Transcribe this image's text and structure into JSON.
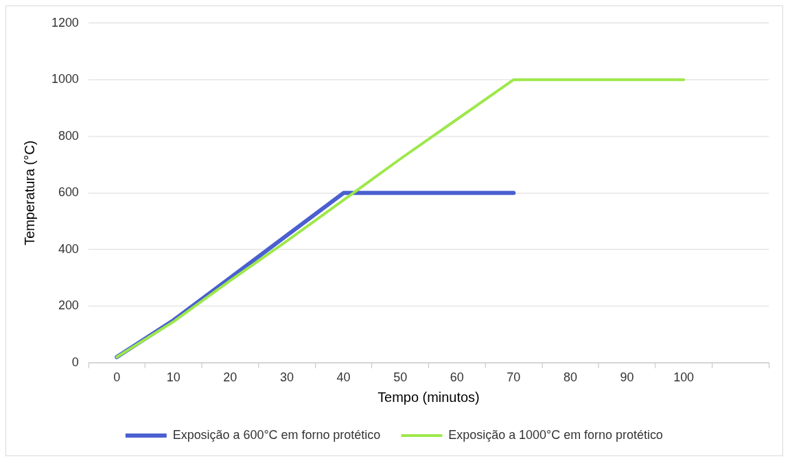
{
  "chart_data": {
    "type": "line",
    "xlabel": "Tempo (minutos)",
    "ylabel": "Temperatura (°C)",
    "categories": [
      "0",
      "10",
      "20",
      "30",
      "40",
      "50",
      "60",
      "70",
      "80",
      "90",
      "100",
      null
    ],
    "series": [
      {
        "name": "Exposição a 600°C em forno protético",
        "color": "#4a5fd0",
        "values": [
          20,
          150,
          300,
          450,
          600,
          600,
          600,
          600,
          null,
          null,
          null,
          null
        ]
      },
      {
        "name": "Exposição a 1000°C em forno protético",
        "color": "#9de84a",
        "values": [
          20,
          145,
          290,
          430,
          575,
          720,
          860,
          1000,
          1000,
          1000,
          1000,
          null
        ]
      }
    ],
    "ylim": [
      0,
      1200
    ],
    "yticks": [
      0,
      200,
      400,
      600,
      800,
      1000,
      1200
    ],
    "grid": "y",
    "legend": "bottom",
    "marker": "none",
    "line_style": "solid"
  }
}
